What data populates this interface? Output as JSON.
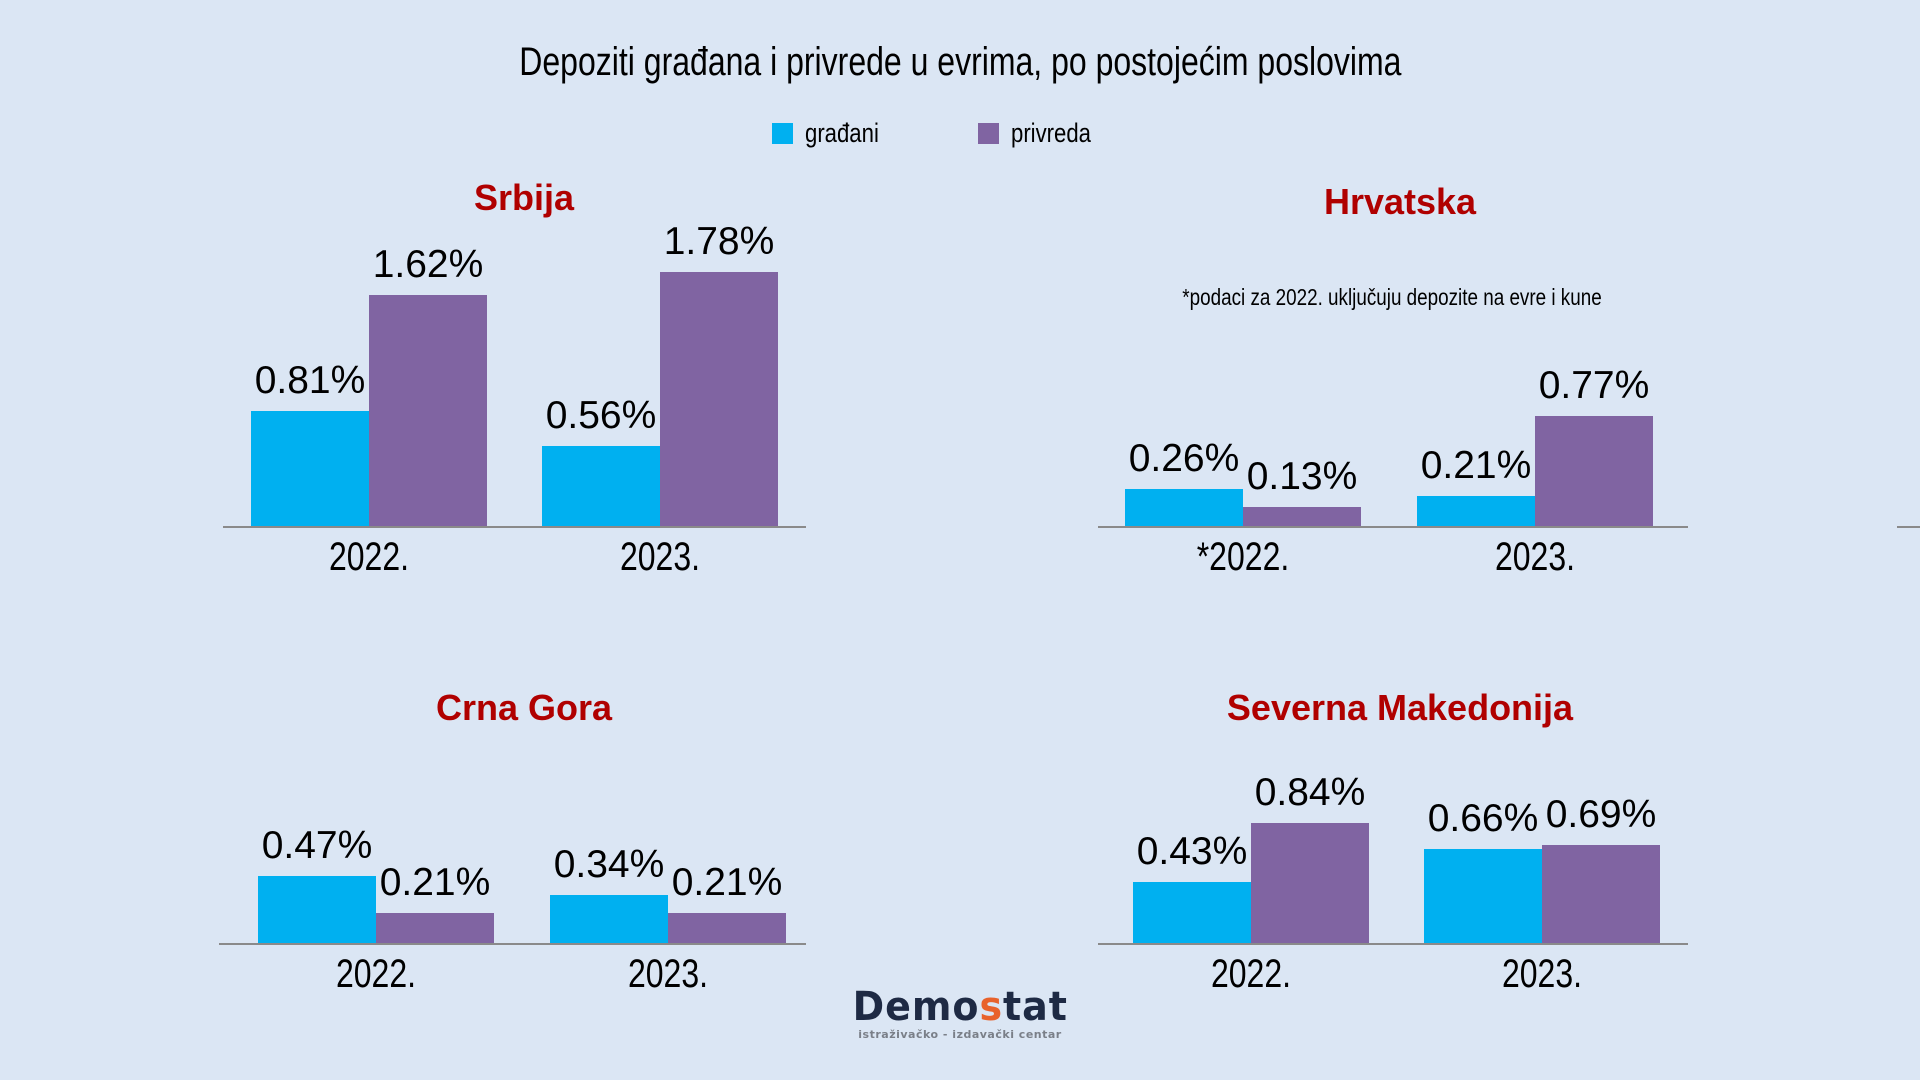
{
  "title": "Depoziti građana i privrede u evrima, po postojećim poslovima",
  "legend": [
    {
      "label": "građani",
      "color": "#00b0f0"
    },
    {
      "label": "privreda",
      "color": "#8064a2"
    }
  ],
  "colors": {
    "background": "#dbe6f4",
    "gradjani": "#00b0f0",
    "privreda": "#8064a2",
    "panel_title": "#b00000",
    "axis": "#8a8a8a"
  },
  "panels": [
    {
      "title": "Srbija",
      "note": "",
      "categories": [
        "2022.",
        "2023."
      ],
      "gradjani": [
        "0.81%",
        "0.56%"
      ],
      "privreda": [
        "1.62%",
        "1.78%"
      ]
    },
    {
      "title": "Hrvatska",
      "note": "*podaci za 2022. uključuju depozite na evre i kune",
      "categories": [
        "*2022.",
        "2023."
      ],
      "gradjani": [
        "0.26%",
        "0.21%"
      ],
      "privreda": [
        "0.13%",
        "0.77%"
      ]
    },
    {
      "title": "Crna Gora",
      "note": "",
      "categories": [
        "2022.",
        "2023."
      ],
      "gradjani": [
        "0.47%",
        "0.34%"
      ],
      "privreda": [
        "0.21%",
        "0.21%"
      ]
    },
    {
      "title": "Severna Makedonija",
      "note": "",
      "categories": [
        "2022.",
        "2023."
      ],
      "gradjani": [
        "0.43%",
        "0.66%"
      ],
      "privreda": [
        "0.84%",
        "0.69%"
      ]
    }
  ],
  "logo": {
    "pre": "Demo",
    "accent": "s",
    "post": "tat",
    "subtitle": "istraživačko - izdavački centar"
  },
  "chart_data": [
    {
      "type": "bar",
      "title": "Srbija",
      "categories": [
        "2022.",
        "2023."
      ],
      "series": [
        {
          "name": "građani",
          "values": [
            0.81,
            0.56
          ]
        },
        {
          "name": "privreda",
          "values": [
            1.62,
            1.78
          ]
        }
      ],
      "value_format": "percent",
      "xlabel": "",
      "ylabel": "",
      "grid": false,
      "legend_position": "top"
    },
    {
      "type": "bar",
      "title": "Hrvatska",
      "subtitle": "*podaci za 2022. uključuju depozite na evre i kune",
      "categories": [
        "*2022.",
        "2023."
      ],
      "series": [
        {
          "name": "građani",
          "values": [
            0.26,
            0.21
          ]
        },
        {
          "name": "privreda",
          "values": [
            0.13,
            0.77
          ]
        }
      ],
      "value_format": "percent",
      "xlabel": "",
      "ylabel": "",
      "grid": false,
      "legend_position": "top"
    },
    {
      "type": "bar",
      "title": "Crna Gora",
      "categories": [
        "2022.",
        "2023."
      ],
      "series": [
        {
          "name": "građani",
          "values": [
            0.47,
            0.34
          ]
        },
        {
          "name": "privreda",
          "values": [
            0.21,
            0.21
          ]
        }
      ],
      "value_format": "percent",
      "xlabel": "",
      "ylabel": "",
      "grid": false,
      "legend_position": "top"
    },
    {
      "type": "bar",
      "title": "Severna Makedonija",
      "categories": [
        "2022.",
        "2023."
      ],
      "series": [
        {
          "name": "građani",
          "values": [
            0.43,
            0.66
          ]
        },
        {
          "name": "privreda",
          "values": [
            0.84,
            0.69
          ]
        }
      ],
      "value_format": "percent",
      "xlabel": "",
      "ylabel": "",
      "grid": false,
      "legend_position": "top"
    }
  ]
}
